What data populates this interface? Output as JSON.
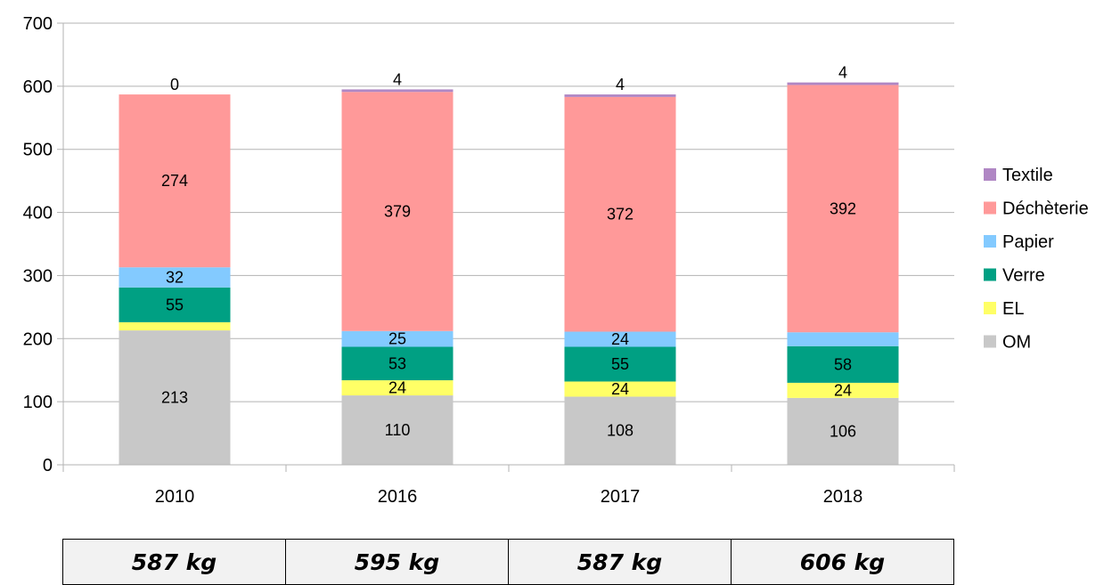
{
  "chart_data": {
    "type": "bar",
    "stacked": true,
    "categories": [
      "2010",
      "2016",
      "2017",
      "2018"
    ],
    "series": [
      {
        "name": "OM",
        "color": "#c8c8c8",
        "values": [
          213,
          110,
          108,
          106
        ]
      },
      {
        "name": "EL",
        "color": "#ffff66",
        "values": [
          13,
          24,
          24,
          24
        ]
      },
      {
        "name": "Verre",
        "color": "#00a083",
        "values": [
          55,
          53,
          55,
          58
        ]
      },
      {
        "name": "Papier",
        "color": "#83caff",
        "values": [
          32,
          25,
          24,
          22
        ]
      },
      {
        "name": "Déchèterie",
        "color": "#ff9999",
        "values": [
          274,
          379,
          372,
          392
        ]
      },
      {
        "name": "Textile",
        "color": "#b087c4",
        "values": [
          0,
          4,
          4,
          4
        ]
      }
    ],
    "ylim": [
      0,
      700
    ],
    "yticks": [
      0,
      100,
      200,
      300,
      400,
      500,
      600,
      700
    ],
    "grid": true,
    "legend": "right",
    "title": "",
    "xlabel": "",
    "ylabel": ""
  },
  "totals": [
    "587 kg",
    "595 kg",
    "587 kg",
    "606 kg"
  ]
}
